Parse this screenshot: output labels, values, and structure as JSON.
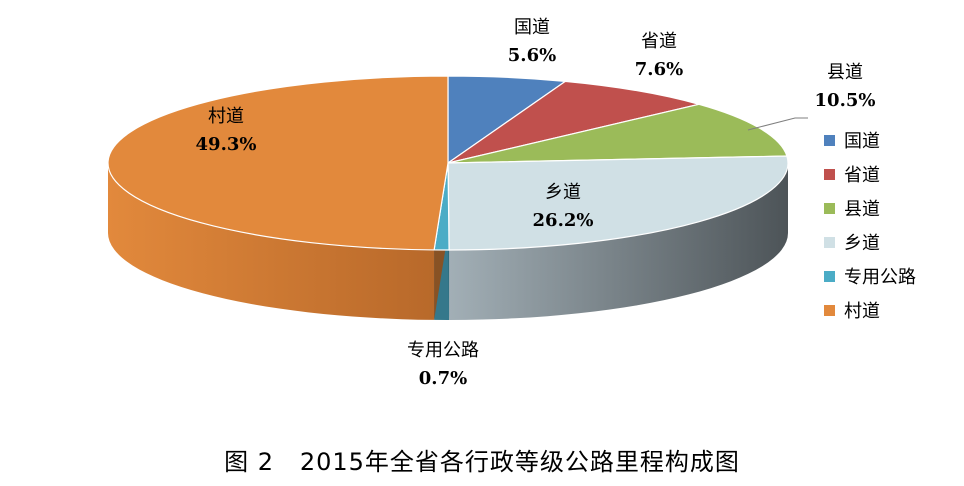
{
  "chart_data": {
    "type": "pie",
    "categories": [
      "国道",
      "省道",
      "县道",
      "乡道",
      "专用公路",
      "村道"
    ],
    "values": [
      5.6,
      7.6,
      10.5,
      26.2,
      0.7,
      49.3
    ],
    "percent_labels": [
      "5.6%",
      "7.6%",
      "10.5%",
      "26.2%",
      "0.7%",
      "49.3%"
    ],
    "colors": [
      "#4F81BD",
      "#C0504D",
      "#9BBB59",
      "#D0E0E5",
      "#4BACC6",
      "#E2893C"
    ],
    "legend_position": "right",
    "caption": "图 2   2015年全省各行政等级公路里程构成图"
  }
}
